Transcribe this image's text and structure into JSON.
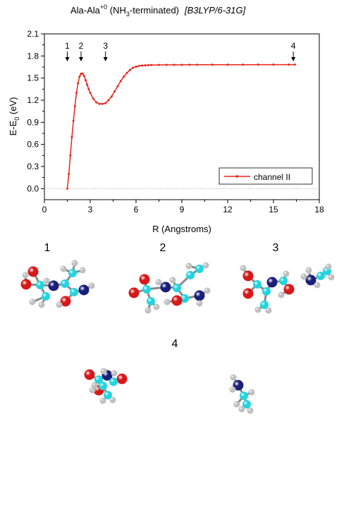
{
  "chart_data": {
    "type": "line",
    "title": "Ala-Ala",
    "title_sup": "+0",
    "title_mid": " (NH",
    "title_sub": "3",
    "title_end": "-terminated)",
    "title_method": "[B3LYP/6-31G]",
    "xlabel": "R (Angstroms)",
    "ylabel": "E-E",
    "ylabel_sub": "0",
    "ylabel_unit": " (eV)",
    "xlim": [
      0,
      18
    ],
    "ylim": [
      -0.15,
      2.1
    ],
    "x_ticks": [
      0,
      3,
      6,
      9,
      12,
      15,
      18
    ],
    "y_ticks": [
      0.0,
      0.3,
      0.6,
      0.9,
      1.2,
      1.5,
      1.8,
      2.1
    ],
    "x_tick_labels": [
      "0",
      "3",
      "6",
      "9",
      "12",
      "15",
      "18"
    ],
    "y_tick_labels": [
      "0.0",
      "0.3",
      "0.6",
      "0.9",
      "1.2",
      "1.5",
      "1.8",
      "2.1"
    ],
    "grid": false,
    "baseline": 0.0,
    "legend_position": "bottom-right",
    "series": [
      {
        "name": "channel II",
        "color": "#e8231b",
        "x": [
          1.5,
          1.6,
          1.7,
          1.8,
          1.9,
          2.0,
          2.1,
          2.2,
          2.3,
          2.4,
          2.5,
          2.6,
          2.7,
          2.8,
          2.9,
          3.0,
          3.2,
          3.4,
          3.6,
          3.8,
          4.0,
          4.2,
          4.4,
          4.6,
          4.8,
          5.0,
          5.2,
          5.4,
          5.6,
          5.8,
          6.0,
          6.2,
          6.4,
          6.6,
          6.8,
          7.0,
          7.5,
          8.0,
          8.5,
          9.0,
          9.5,
          10.0,
          11.0,
          12.0,
          13.0,
          14.0,
          15.0,
          16.0,
          16.4
        ],
        "y": [
          0.0,
          0.2,
          0.45,
          0.7,
          0.92,
          1.12,
          1.3,
          1.43,
          1.52,
          1.56,
          1.56,
          1.53,
          1.47,
          1.41,
          1.35,
          1.3,
          1.22,
          1.17,
          1.15,
          1.15,
          1.16,
          1.2,
          1.25,
          1.32,
          1.39,
          1.46,
          1.52,
          1.57,
          1.61,
          1.64,
          1.655,
          1.665,
          1.67,
          1.673,
          1.675,
          1.677,
          1.679,
          1.68,
          1.68,
          1.68,
          1.681,
          1.681,
          1.682,
          1.682,
          1.682,
          1.683,
          1.683,
          1.683,
          1.683
        ]
      }
    ],
    "markers": [
      {
        "label": "1",
        "x": 1.5
      },
      {
        "label": "2",
        "x": 2.4
      },
      {
        "label": "3",
        "x": 4.0
      },
      {
        "label": "4",
        "x": 16.3
      }
    ]
  },
  "structures": [
    {
      "label": "1"
    },
    {
      "label": "2"
    },
    {
      "label": "3"
    },
    {
      "label": "4"
    }
  ],
  "colors": {
    "carbon": "#22d4e0",
    "nitrogen": "#1a1f7a",
    "oxygen": "#d81818",
    "hydrogen": "#f0f0f0"
  }
}
